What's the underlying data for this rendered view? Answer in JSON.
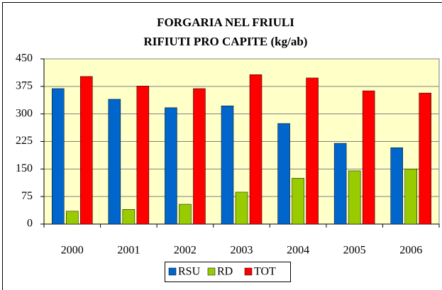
{
  "chart_data": {
    "type": "bar",
    "title": "FORGARIA NEL FRIULI",
    "subtitle": "RIFIUTI PRO CAPITE (kg/ab)",
    "categories": [
      "2000",
      "2001",
      "2002",
      "2003",
      "2004",
      "2005",
      "2006"
    ],
    "series": [
      {
        "name": "RSU",
        "color": "#0066cc",
        "values": [
          369,
          340,
          317,
          322,
          274,
          220,
          208
        ]
      },
      {
        "name": "RD",
        "color": "#99cc00",
        "values": [
          35,
          40,
          54,
          87,
          125,
          145,
          150
        ]
      },
      {
        "name": "TOT",
        "color": "#ff0000",
        "values": [
          402,
          376,
          369,
          407,
          398,
          363,
          357
        ]
      }
    ],
    "ylim": [
      0,
      450
    ],
    "yticks": [
      0,
      75,
      150,
      225,
      300,
      375,
      450
    ],
    "grid": true,
    "legend": "bottom"
  }
}
